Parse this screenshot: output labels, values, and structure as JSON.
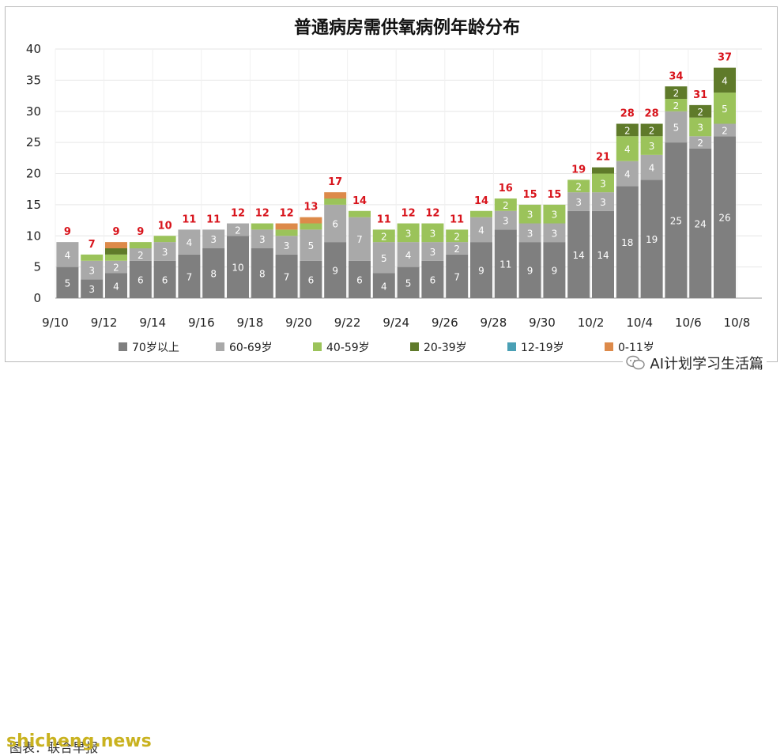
{
  "chart_data": {
    "type": "bar",
    "stacked": true,
    "title": "普通病房需供氧病例年龄分布",
    "x_tick_labels": [
      "9/10",
      "9/12",
      "9/14",
      "9/16",
      "9/18",
      "9/20",
      "9/22",
      "9/24",
      "9/26",
      "9/28",
      "9/30",
      "10/2",
      "10/4",
      "10/6",
      "10/8"
    ],
    "categories": [
      "9/10",
      "9/11",
      "9/12",
      "9/13",
      "9/14",
      "9/15",
      "9/16",
      "9/17",
      "9/18",
      "9/19",
      "9/20",
      "9/21",
      "9/22",
      "9/23",
      "9/24",
      "9/25",
      "9/26",
      "9/27",
      "9/28",
      "9/29",
      "9/30",
      "10/1",
      "10/2",
      "10/3",
      "10/4",
      "10/5",
      "10/6",
      "10/7"
    ],
    "ylim": [
      0,
      40
    ],
    "yticks": [
      0,
      5,
      10,
      15,
      20,
      25,
      30,
      35,
      40
    ],
    "grid": true,
    "legend_position": "bottom",
    "series": [
      {
        "name": "70岁以上",
        "color": "#7f7f7f",
        "values": [
          5,
          3,
          4,
          6,
          6,
          7,
          8,
          10,
          8,
          7,
          6,
          9,
          6,
          4,
          5,
          6,
          7,
          9,
          11,
          9,
          9,
          14,
          14,
          18,
          19,
          25,
          24,
          26
        ]
      },
      {
        "name": "60-69岁",
        "color": "#a9a9a9",
        "values": [
          4,
          3,
          2,
          2,
          3,
          4,
          3,
          2,
          3,
          3,
          5,
          6,
          7,
          5,
          4,
          3,
          2,
          4,
          3,
          3,
          3,
          3,
          3,
          4,
          4,
          5,
          2,
          2
        ]
      },
      {
        "name": "40-59岁",
        "color": "#9bc35a",
        "values": [
          0,
          1,
          1,
          1,
          1,
          0,
          0,
          0,
          1,
          1,
          1,
          1,
          1,
          2,
          3,
          3,
          2,
          1,
          2,
          3,
          3,
          2,
          3,
          4,
          3,
          2,
          3,
          5
        ]
      },
      {
        "name": "20-39岁",
        "color": "#5f7a2a",
        "values": [
          0,
          0,
          1,
          0,
          0,
          0,
          0,
          0,
          0,
          0,
          0,
          0,
          0,
          0,
          0,
          0,
          0,
          0,
          0,
          0,
          0,
          0,
          1,
          2,
          2,
          2,
          2,
          4
        ]
      },
      {
        "name": "12-19岁",
        "color": "#4aa0b5",
        "values": [
          0,
          0,
          0,
          0,
          0,
          0,
          0,
          0,
          0,
          0,
          0,
          0,
          0,
          0,
          0,
          0,
          0,
          0,
          0,
          0,
          0,
          0,
          0,
          0,
          0,
          0,
          0,
          0
        ]
      },
      {
        "name": "0-11岁",
        "color": "#dd8a4a",
        "values": [
          0,
          0,
          1,
          0,
          0,
          0,
          0,
          0,
          0,
          1,
          1,
          1,
          0,
          0,
          0,
          0,
          0,
          0,
          0,
          0,
          0,
          0,
          0,
          0,
          0,
          0,
          0,
          0
        ]
      }
    ],
    "totals": [
      9,
      7,
      9,
      9,
      10,
      11,
      11,
      12,
      12,
      12,
      13,
      17,
      14,
      11,
      12,
      12,
      11,
      14,
      16,
      15,
      15,
      19,
      21,
      28,
      28,
      34,
      31,
      37
    ],
    "highlight_total": {
      "category": "10/7",
      "color": "#d8141c"
    }
  },
  "footer": {
    "credit": "图表：联合早报",
    "watermark": "shicheng.news",
    "brand": "AI计划学习生活篇"
  },
  "colors": {
    "grid": "#e6e6e6",
    "total_label": "#d8141c",
    "frame": "#b9b9b9"
  }
}
